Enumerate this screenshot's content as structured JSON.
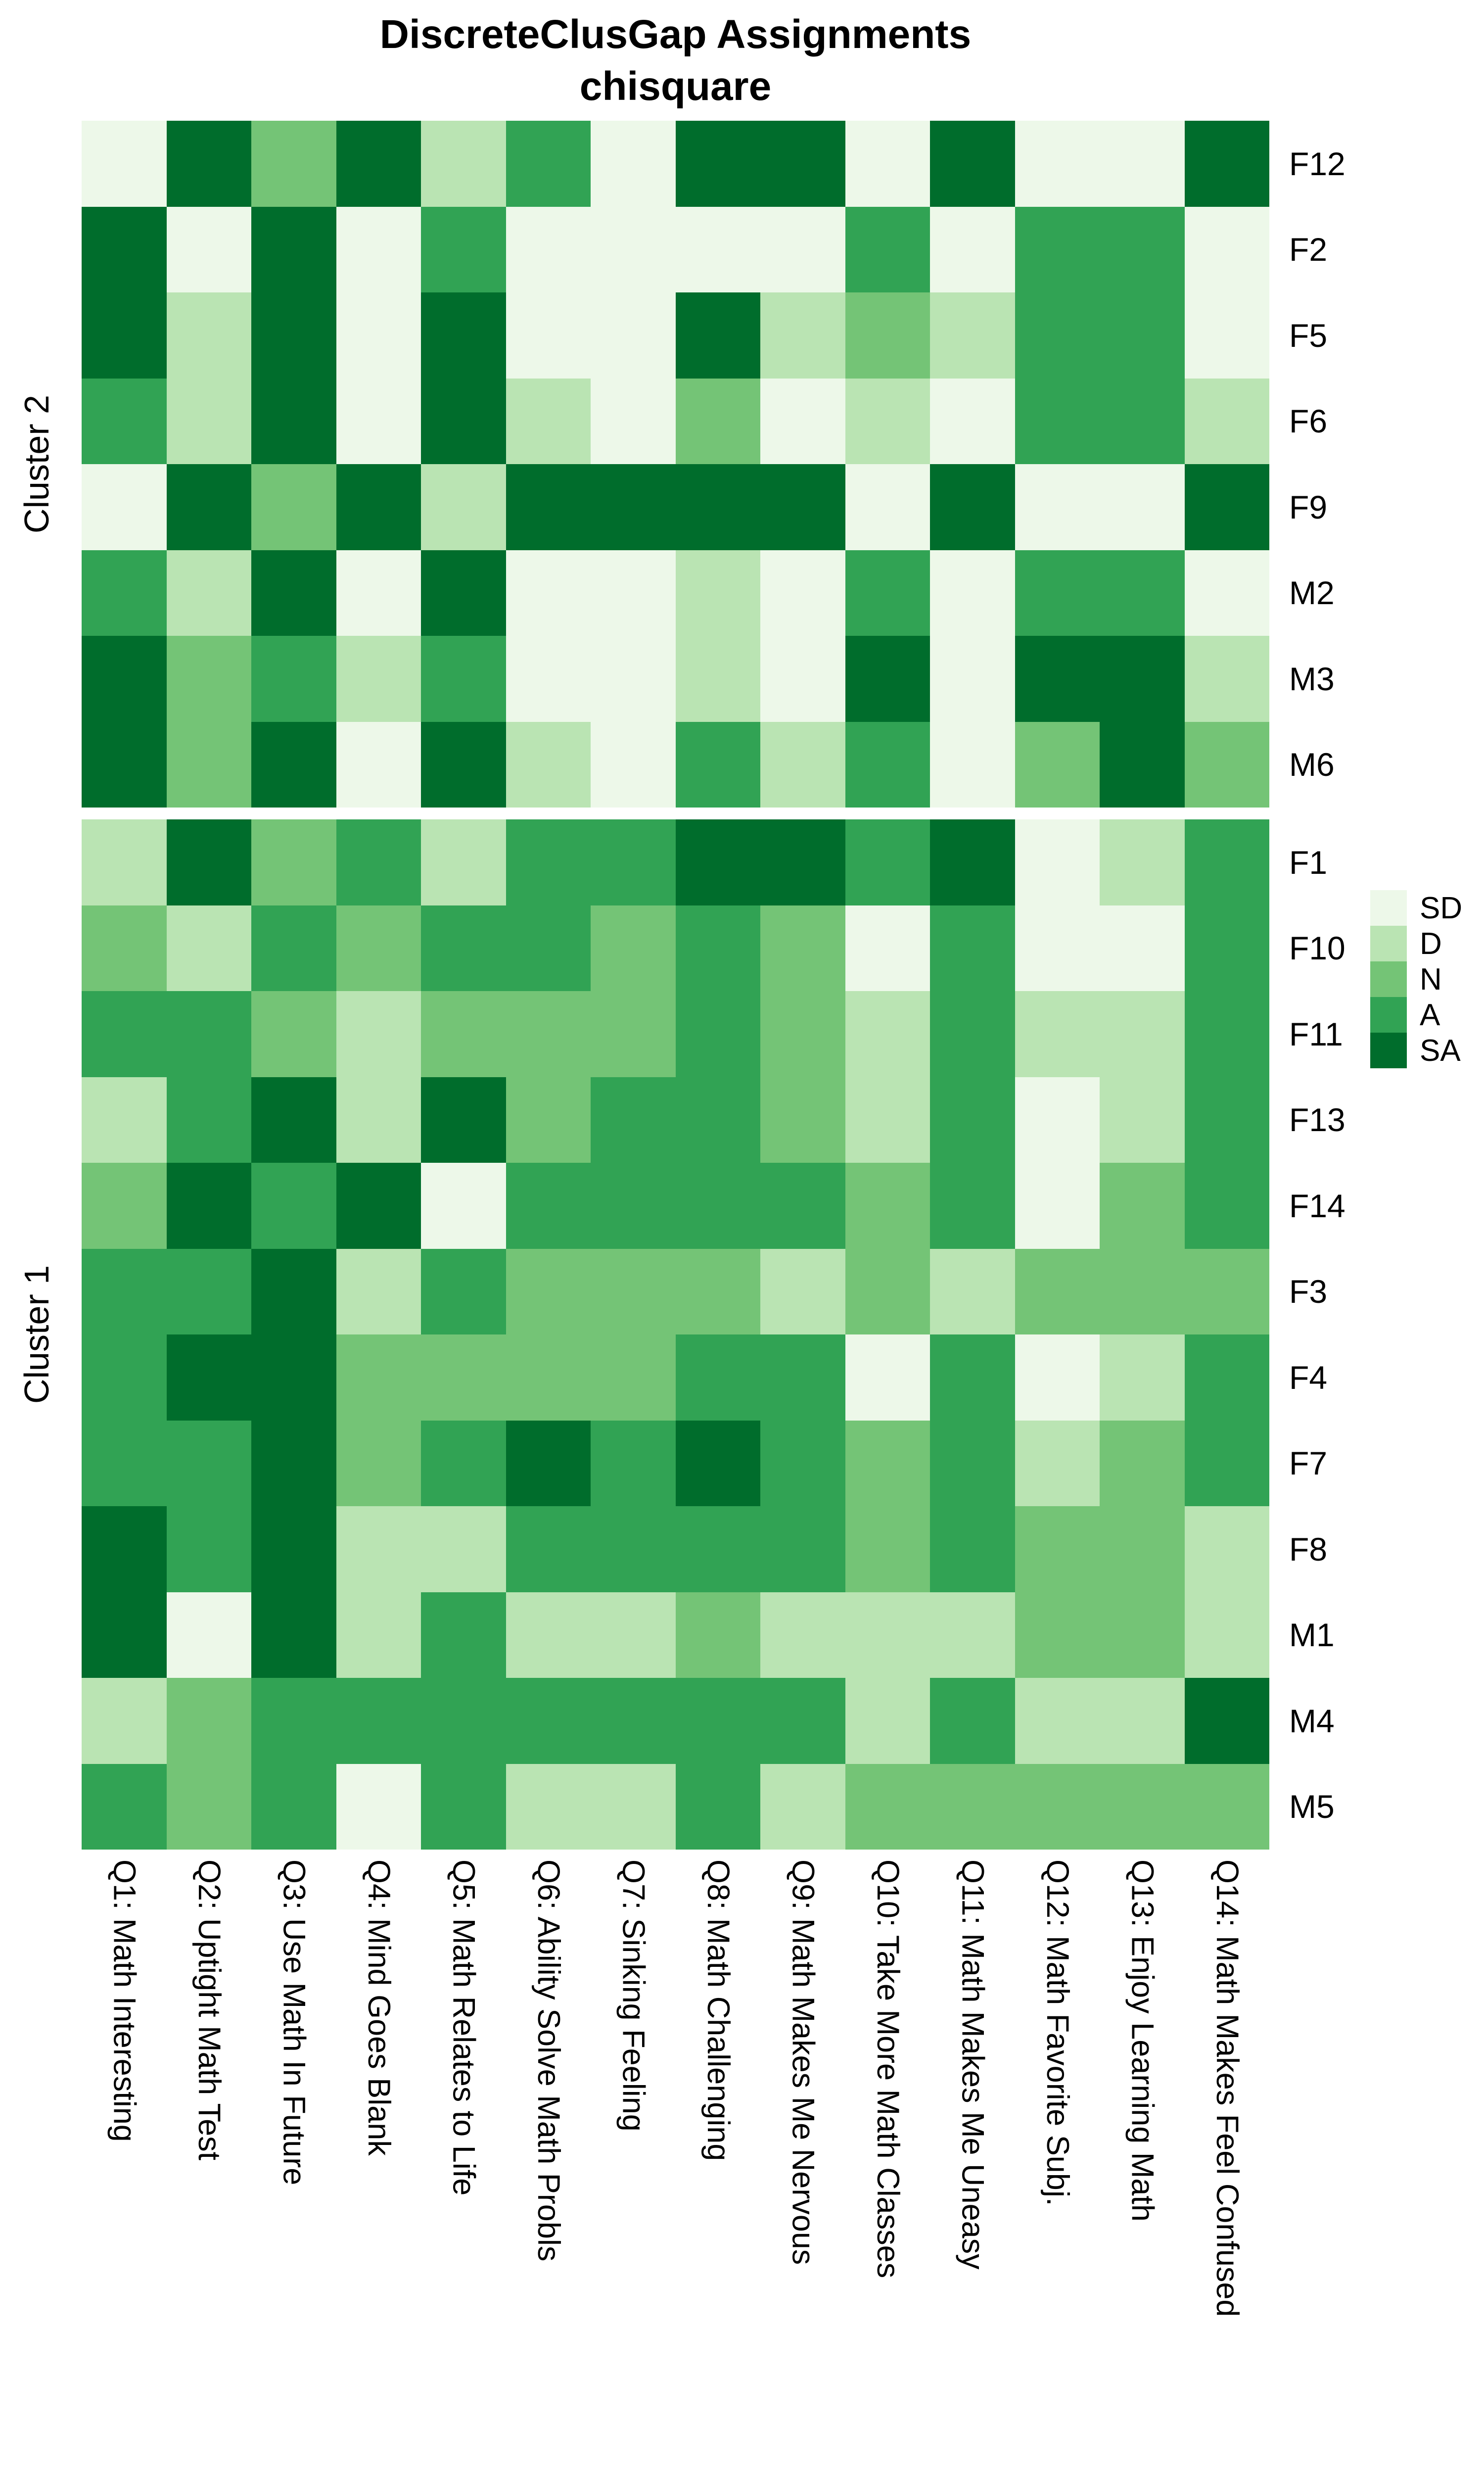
{
  "title": {
    "line1": "DiscreteClusGap Assignments",
    "line2": "chisquare"
  },
  "chart_data": {
    "type": "heatmap",
    "title": "DiscreteClusGap Assignments",
    "subtitle": "chisquare",
    "levels": [
      "SD",
      "D",
      "N",
      "A",
      "SA"
    ],
    "colors": {
      "SD": "#edf8e9",
      "D": "#bae4b3",
      "N": "#74c476",
      "A": "#31a354",
      "SA": "#006d2c"
    },
    "columns": [
      "Q1: Math Interesting",
      "Q2: Uptight Math Test",
      "Q3: Use Math In Future",
      "Q4: Mind Goes Blank",
      "Q5: Math Relates to Life",
      "Q6: Ability Solve Math Probls",
      "Q7: Sinking Feeling",
      "Q8: Math Challenging",
      "Q9: Math Makes Me Nervous",
      "Q10: Take More Math Classes",
      "Q11: Math Makes Me Uneasy",
      "Q12: Math Favorite Subj.",
      "Q13: Enjoy Learning Math",
      "Q14: Math Makes Feel Confused"
    ],
    "row_groups": [
      {
        "name": "Cluster 2",
        "rows": [
          {
            "id": "F12",
            "values": [
              "SD",
              "SA",
              "N",
              "SA",
              "D",
              "A",
              "SD",
              "SA",
              "SA",
              "SD",
              "SA",
              "SD",
              "SD",
              "SA"
            ]
          },
          {
            "id": "F2",
            "values": [
              "SA",
              "SD",
              "SA",
              "SD",
              "A",
              "SD",
              "SD",
              "SD",
              "SD",
              "A",
              "SD",
              "A",
              "A",
              "SD"
            ]
          },
          {
            "id": "F5",
            "values": [
              "SA",
              "D",
              "SA",
              "SD",
              "SA",
              "SD",
              "SD",
              "SA",
              "D",
              "N",
              "D",
              "A",
              "A",
              "SD"
            ]
          },
          {
            "id": "F6",
            "values": [
              "A",
              "D",
              "SA",
              "SD",
              "SA",
              "D",
              "SD",
              "N",
              "SD",
              "D",
              "SD",
              "A",
              "A",
              "D"
            ]
          },
          {
            "id": "F9",
            "values": [
              "SD",
              "SA",
              "N",
              "SA",
              "D",
              "SA",
              "SA",
              "SA",
              "SA",
              "SD",
              "SA",
              "SD",
              "SD",
              "SA"
            ]
          },
          {
            "id": "M2",
            "values": [
              "A",
              "D",
              "SA",
              "SD",
              "SA",
              "SD",
              "SD",
              "D",
              "SD",
              "A",
              "SD",
              "A",
              "A",
              "SD"
            ]
          },
          {
            "id": "M3",
            "values": [
              "SA",
              "N",
              "A",
              "D",
              "A",
              "SD",
              "SD",
              "D",
              "SD",
              "SA",
              "SD",
              "SA",
              "SA",
              "D"
            ]
          },
          {
            "id": "M6",
            "values": [
              "SA",
              "N",
              "SA",
              "SD",
              "SA",
              "D",
              "SD",
              "A",
              "D",
              "A",
              "SD",
              "N",
              "SA",
              "N"
            ]
          }
        ]
      },
      {
        "name": "Cluster 1",
        "rows": [
          {
            "id": "F1",
            "values": [
              "D",
              "SA",
              "N",
              "A",
              "D",
              "A",
              "A",
              "SA",
              "SA",
              "A",
              "SA",
              "SD",
              "D",
              "A"
            ]
          },
          {
            "id": "F10",
            "values": [
              "N",
              "D",
              "A",
              "N",
              "A",
              "A",
              "N",
              "A",
              "N",
              "SD",
              "A",
              "SD",
              "SD",
              "A"
            ]
          },
          {
            "id": "F11",
            "values": [
              "A",
              "A",
              "N",
              "D",
              "N",
              "N",
              "N",
              "A",
              "N",
              "D",
              "A",
              "D",
              "D",
              "A"
            ]
          },
          {
            "id": "F13",
            "values": [
              "D",
              "A",
              "SA",
              "D",
              "SA",
              "N",
              "A",
              "A",
              "N",
              "D",
              "A",
              "SD",
              "D",
              "A"
            ]
          },
          {
            "id": "F14",
            "values": [
              "N",
              "SA",
              "A",
              "SA",
              "SD",
              "A",
              "A",
              "A",
              "A",
              "N",
              "A",
              "SD",
              "N",
              "A"
            ]
          },
          {
            "id": "F3",
            "values": [
              "A",
              "A",
              "SA",
              "D",
              "A",
              "N",
              "N",
              "N",
              "D",
              "N",
              "D",
              "N",
              "N",
              "N"
            ]
          },
          {
            "id": "F4",
            "values": [
              "A",
              "SA",
              "SA",
              "N",
              "N",
              "N",
              "N",
              "A",
              "A",
              "SD",
              "A",
              "SD",
              "D",
              "A"
            ]
          },
          {
            "id": "F7",
            "values": [
              "A",
              "A",
              "SA",
              "N",
              "A",
              "SA",
              "A",
              "SA",
              "A",
              "N",
              "A",
              "D",
              "N",
              "A"
            ]
          },
          {
            "id": "F8",
            "values": [
              "SA",
              "A",
              "SA",
              "D",
              "D",
              "A",
              "A",
              "A",
              "A",
              "N",
              "A",
              "N",
              "N",
              "D"
            ]
          },
          {
            "id": "M1",
            "values": [
              "SA",
              "SD",
              "SA",
              "D",
              "A",
              "D",
              "D",
              "N",
              "D",
              "D",
              "D",
              "N",
              "N",
              "D"
            ]
          },
          {
            "id": "M4",
            "values": [
              "D",
              "N",
              "A",
              "A",
              "A",
              "A",
              "A",
              "A",
              "A",
              "D",
              "A",
              "D",
              "D",
              "SA"
            ]
          },
          {
            "id": "M5",
            "values": [
              "A",
              "N",
              "A",
              "SD",
              "A",
              "D",
              "D",
              "A",
              "D",
              "N",
              "N",
              "N",
              "N",
              "N"
            ]
          }
        ]
      }
    ],
    "legend": {
      "position": "right",
      "items": [
        {
          "label": "SD",
          "color": "#edf8e9"
        },
        {
          "label": "D",
          "color": "#bae4b3"
        },
        {
          "label": "N",
          "color": "#74c476"
        },
        {
          "label": "A",
          "color": "#31a354"
        },
        {
          "label": "SA",
          "color": "#006d2c"
        }
      ]
    },
    "layout_hints": {
      "grid_on": false,
      "row_label_side": "right",
      "column_label_rotation": 90,
      "cluster_gap_rows": true
    }
  }
}
